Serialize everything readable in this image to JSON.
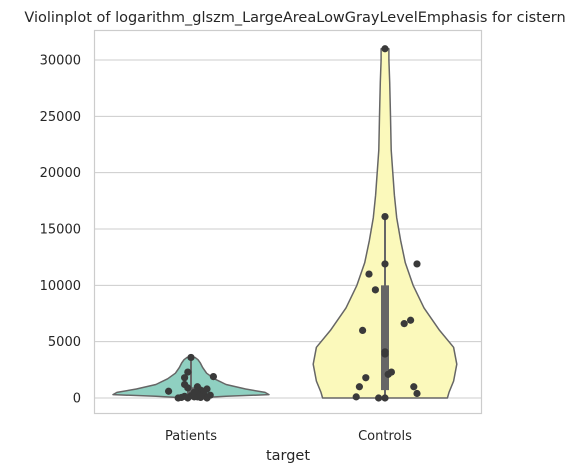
{
  "chart_data": {
    "type": "violin",
    "title": "Violinplot of logarithm_glszm_LargeAreaLowGrayLevelEmphasis for cistern",
    "xlabel": "target",
    "ylabel": "",
    "ylim": [
      -1500,
      32500
    ],
    "yticks": [
      0,
      5000,
      10000,
      15000,
      20000,
      25000,
      30000
    ],
    "grid": "horizontal",
    "categories": [
      "Patients",
      "Controls"
    ],
    "colors": {
      "Patients": "#8fd0c1",
      "Controls": "#fbf9bb",
      "outline": "#666666",
      "points": "#3a3a3a",
      "box": "#666666"
    },
    "violins": [
      {
        "category": "Patients",
        "min": 0,
        "max": 3600,
        "box": {
          "q1": 150,
          "median": 450,
          "q3": 950,
          "whisker_low": 0,
          "whisker_high": 3600
        },
        "profile": [
          [
            0,
            0.05
          ],
          [
            150,
            0.45
          ],
          [
            300,
            1.0
          ],
          [
            500,
            0.95
          ],
          [
            800,
            0.7
          ],
          [
            1200,
            0.45
          ],
          [
            1700,
            0.3
          ],
          [
            2200,
            0.2
          ],
          [
            2700,
            0.15
          ],
          [
            3100,
            0.12
          ],
          [
            3400,
            0.09
          ],
          [
            3600,
            0.05
          ]
        ],
        "points": [
          [
            -0.07,
            600
          ],
          [
            -0.04,
            0
          ],
          [
            -0.02,
            150
          ],
          [
            -0.02,
            1800
          ],
          [
            -0.01,
            2300
          ],
          [
            0.0,
            3600
          ],
          [
            -0.01,
            900
          ],
          [
            0.0,
            200
          ],
          [
            0.01,
            400
          ],
          [
            0.01,
            500
          ],
          [
            0.02,
            100
          ],
          [
            0.03,
            700
          ],
          [
            0.03,
            50
          ],
          [
            0.04,
            300
          ],
          [
            0.05,
            800
          ],
          [
            0.07,
            1900
          ],
          [
            0.05,
            0
          ],
          [
            -0.02,
            1200
          ],
          [
            0.02,
            350
          ],
          [
            0.01,
            100
          ],
          [
            -0.03,
            50
          ],
          [
            0.06,
            250
          ],
          [
            0.04,
            600
          ],
          [
            -0.01,
            0
          ],
          [
            0.02,
            1000
          ],
          [
            0.03,
            150
          ]
        ]
      },
      {
        "category": "Controls",
        "min": 0,
        "max": 31000,
        "box": {
          "q1": 700,
          "median": 5200,
          "q3": 10000,
          "whisker_low": 0,
          "whisker_high": 16000
        },
        "profile": [
          [
            0,
            0.8
          ],
          [
            500,
            0.82
          ],
          [
            1500,
            0.88
          ],
          [
            3000,
            0.92
          ],
          [
            4500,
            0.88
          ],
          [
            6000,
            0.7
          ],
          [
            8000,
            0.5
          ],
          [
            10000,
            0.36
          ],
          [
            12000,
            0.26
          ],
          [
            14000,
            0.2
          ],
          [
            16000,
            0.15
          ],
          [
            18000,
            0.12
          ],
          [
            20000,
            0.1
          ],
          [
            22000,
            0.08
          ],
          [
            25000,
            0.07
          ],
          [
            28000,
            0.06
          ],
          [
            30000,
            0.05
          ],
          [
            31000,
            0.05
          ]
        ],
        "points": [
          [
            0.0,
            31000
          ],
          [
            0.0,
            16100
          ],
          [
            0.0,
            11900
          ],
          [
            0.1,
            11900
          ],
          [
            -0.05,
            11000
          ],
          [
            -0.03,
            9600
          ],
          [
            0.06,
            6600
          ],
          [
            0.08,
            6900
          ],
          [
            -0.07,
            6000
          ],
          [
            0.0,
            4100
          ],
          [
            0.0,
            3900
          ],
          [
            0.02,
            2300
          ],
          [
            0.01,
            2100
          ],
          [
            -0.06,
            1800
          ],
          [
            -0.08,
            1000
          ],
          [
            0.09,
            1000
          ],
          [
            0.1,
            400
          ],
          [
            -0.09,
            100
          ],
          [
            -0.02,
            0
          ],
          [
            0.0,
            0
          ]
        ]
      }
    ]
  }
}
